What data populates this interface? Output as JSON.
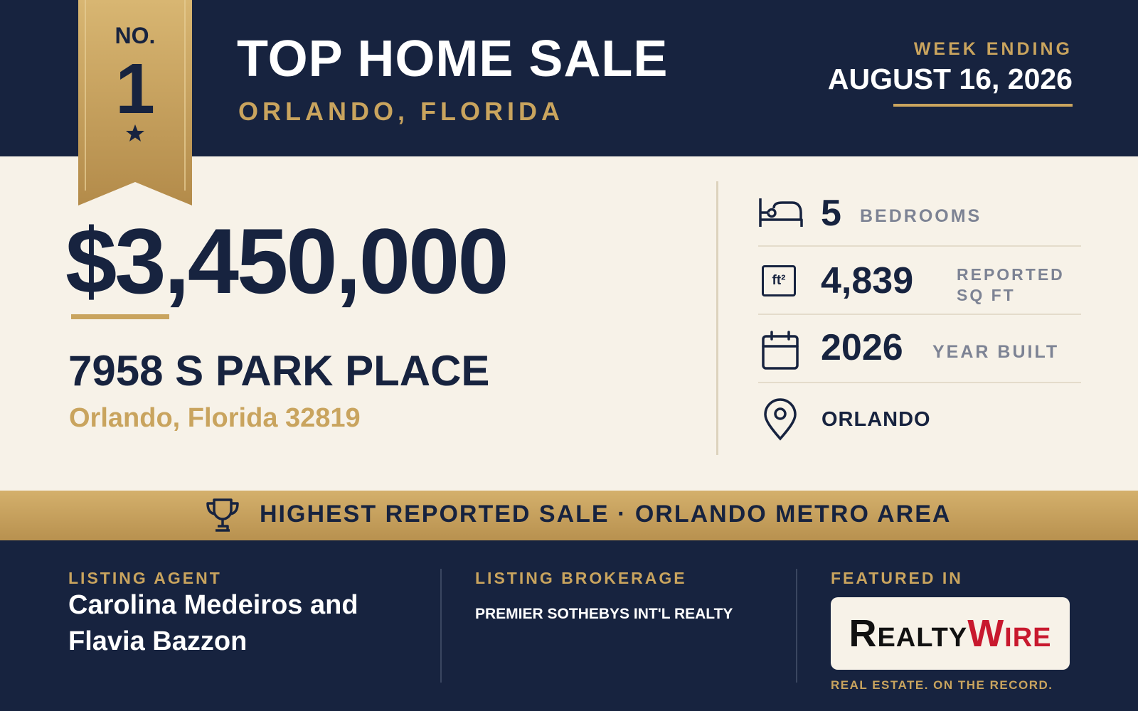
{
  "badge": {
    "label": "NO.",
    "rank": "1"
  },
  "header": {
    "title": "TOP HOME SALE",
    "location": "ORLANDO, FLORIDA",
    "week_label": "WEEK ENDING",
    "week_date": "AUGUST 16, 2026"
  },
  "sale": {
    "price": "$3,450,000",
    "address": "7958 S PARK PLACE",
    "city_line": "Orlando, Florida 32819"
  },
  "stats": [
    {
      "value": "5",
      "label": "BEDROOMS"
    },
    {
      "icon_text": "ft²",
      "value": "4,839",
      "label": "REPORTED SQ FT"
    },
    {
      "value": "2026",
      "label": "YEAR BUILT"
    },
    {
      "value": "ORLANDO"
    }
  ],
  "banner": "HIGHEST REPORTED SALE · ORLANDO METRO AREA",
  "footer": {
    "agent_label": "LISTING AGENT",
    "agent": "Carolina Medeiros and Flavia Bazzon",
    "brokerage_label": "LISTING BROKERAGE",
    "brokerage": "PREMIER SOTHEBYS INT'L REALTY",
    "featured_label": "FEATURED IN",
    "logo_part1": "Realty",
    "logo_part2": "Wire",
    "tagline": "REAL ESTATE. ON THE RECORD."
  }
}
